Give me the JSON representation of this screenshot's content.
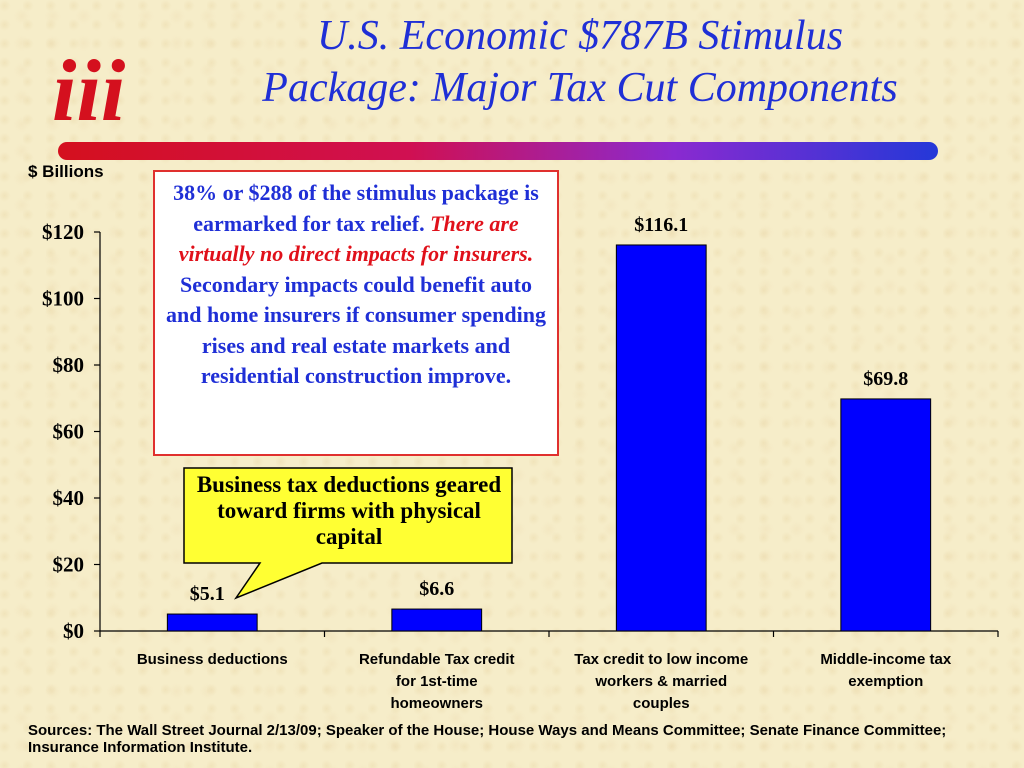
{
  "slide": {
    "title_line1": "U.S. Economic $787B Stimulus",
    "title_line2": "Package: Major Tax Cut Components",
    "logo_text": "iii",
    "unit_label": "$ Billions",
    "sources": "Sources: The Wall Street Journal 2/13/09; Speaker of the House; House Ways and Means Committee; Senate Finance Committee; Insurance Information Institute."
  },
  "note_box": {
    "part1": "38% or $288  of the stimulus package is earmarked for tax relief.  ",
    "part2_red": "There are virtually no direct impacts for insurers.",
    "part3": "  Secondary impacts could benefit auto and home insurers if consumer spending rises and real estate markets and residential construction improve."
  },
  "callout": {
    "text": "Business tax deductions geared toward firms with physical capital"
  },
  "colors": {
    "bar": "#0000ff",
    "title": "#1f2fd6",
    "note_border": "#e0302e",
    "note_red": "#e0101a",
    "callout_fill": "#ffff33"
  },
  "chart_data": {
    "type": "bar",
    "categories": [
      [
        "Business deductions"
      ],
      [
        "Refundable Tax credit",
        "for 1st-time",
        "homeowners"
      ],
      [
        "Tax credit to low income",
        "workers & married",
        "couples"
      ],
      [
        "Middle-income tax",
        "exemption"
      ]
    ],
    "values": [
      5.1,
      6.6,
      116.1,
      69.8
    ],
    "data_labels": [
      "$5.1",
      "$6.6",
      "$116.1",
      "$69.8"
    ],
    "ylabel": "$ Billions",
    "ylim": [
      0,
      120
    ],
    "yticks": [
      0,
      20,
      40,
      60,
      80,
      100,
      120
    ],
    "ytick_labels": [
      "$0",
      "$20",
      "$40",
      "$60",
      "$80",
      "$100",
      "$120"
    ],
    "grid": false
  }
}
